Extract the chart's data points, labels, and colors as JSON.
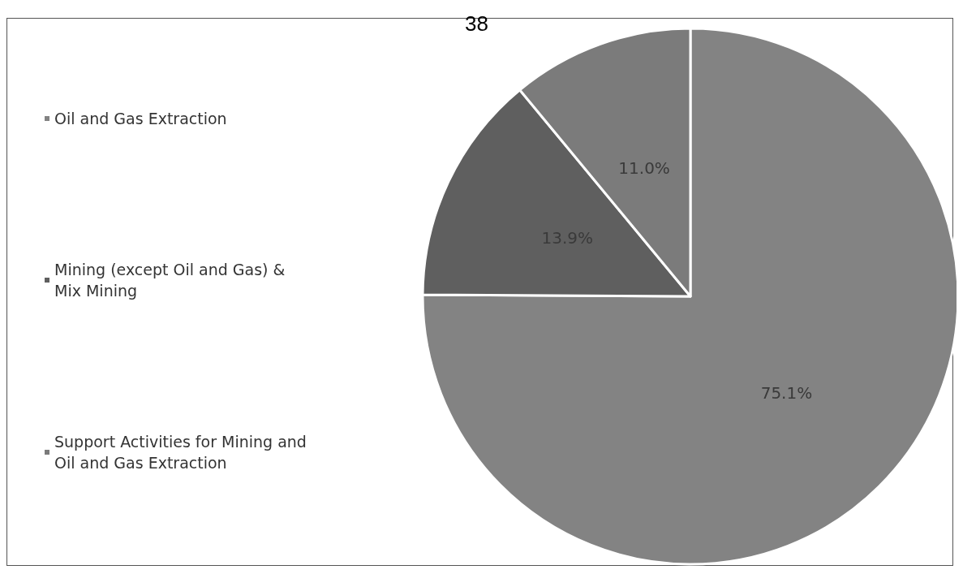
{
  "chart_data": {
    "type": "pie",
    "categories": [
      "Oil and Gas Extraction",
      "Mining (except Oil and Gas) & Mix Mining",
      "Support Activities for Mining and Oil and Gas Extraction"
    ],
    "values": [
      75.1,
      13.9,
      11.0
    ],
    "colors": [
      "#838383",
      "#5f5f5f",
      "#7b7b7b"
    ],
    "value_labels": [
      "75.1%",
      "13.9%",
      "11.0%"
    ],
    "legend": "left",
    "annotations": [
      "38"
    ]
  }
}
